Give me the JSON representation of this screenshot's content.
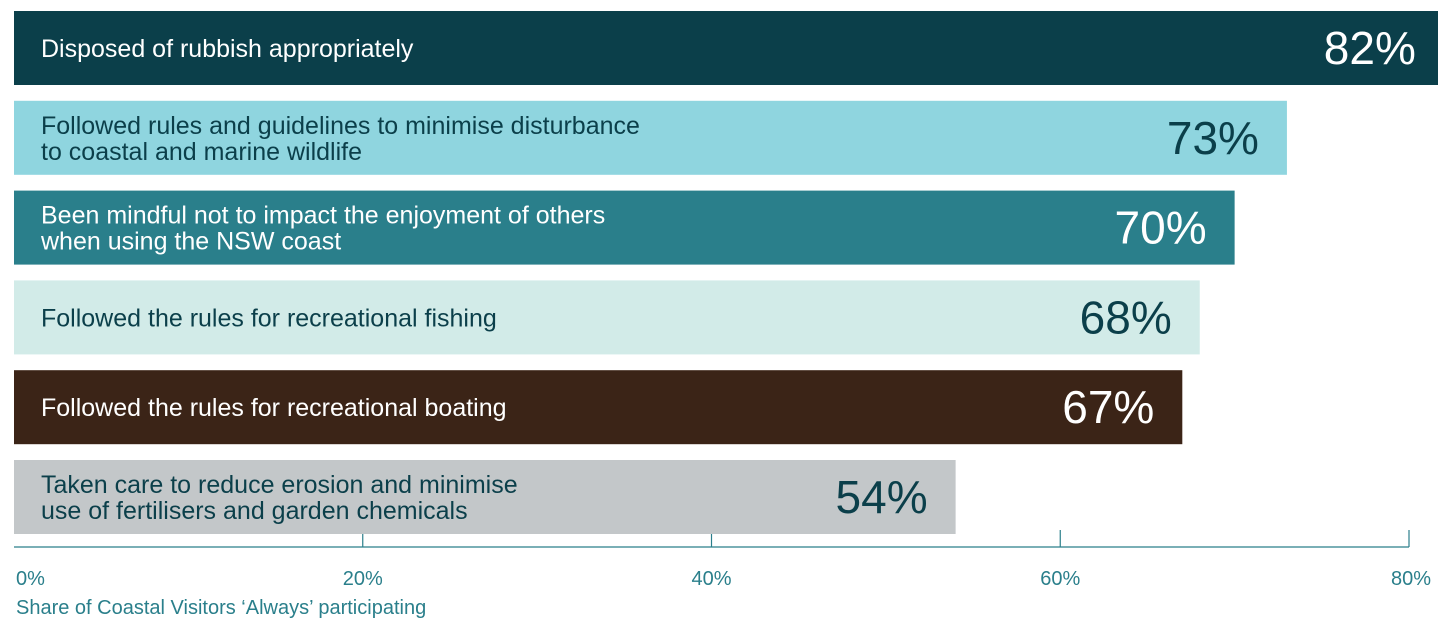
{
  "chart_data": {
    "type": "bar",
    "orientation": "horizontal",
    "categories": [
      "Disposed of rubbish appropriately",
      "Followed rules and guidelines to minimise disturbance to coastal and marine wildlife",
      "Been mindful not to impact the enjoyment of others when using the NSW coast",
      "Followed the rules for recreational fishing",
      "Followed the rules for recreational boating",
      "Taken care to reduce erosion and minimise use of fertilisers and garden chemicals"
    ],
    "category_lines": [
      [
        "Disposed of rubbish appropriately"
      ],
      [
        "Followed rules and guidelines to minimise disturbance",
        "to coastal and marine wildlife"
      ],
      [
        "Been mindful not to impact the enjoyment of others",
        "when using the NSW coast"
      ],
      [
        "Followed the rules for recreational fishing"
      ],
      [
        "Followed the rules for recreational boating"
      ],
      [
        "Taken care to reduce erosion and minimise",
        "use of fertilisers and garden chemicals"
      ]
    ],
    "values": [
      82,
      73,
      70,
      68,
      67,
      54
    ],
    "value_labels": [
      "82%",
      "73%",
      "70%",
      "68%",
      "67%",
      "54%"
    ],
    "bar_colors": [
      "#0b3f4a",
      "#8fd5df",
      "#2a7f8b",
      "#d2ebe8",
      "#3b2417",
      "#c3c7c9"
    ],
    "label_colors": [
      "#ffffff",
      "#0b3f4a",
      "#ffffff",
      "#0b3f4a",
      "#ffffff",
      "#0b3f4a"
    ],
    "xlim": [
      0,
      80
    ],
    "x_ticks": [
      0,
      20,
      40,
      60,
      80
    ],
    "x_tick_labels": [
      "0%",
      "20%",
      "40%",
      "60%",
      "80%"
    ],
    "xlabel": "Share of Coastal Visitors ‘Always’ participating",
    "axis_color": "#2a7f8b",
    "grid": false
  }
}
